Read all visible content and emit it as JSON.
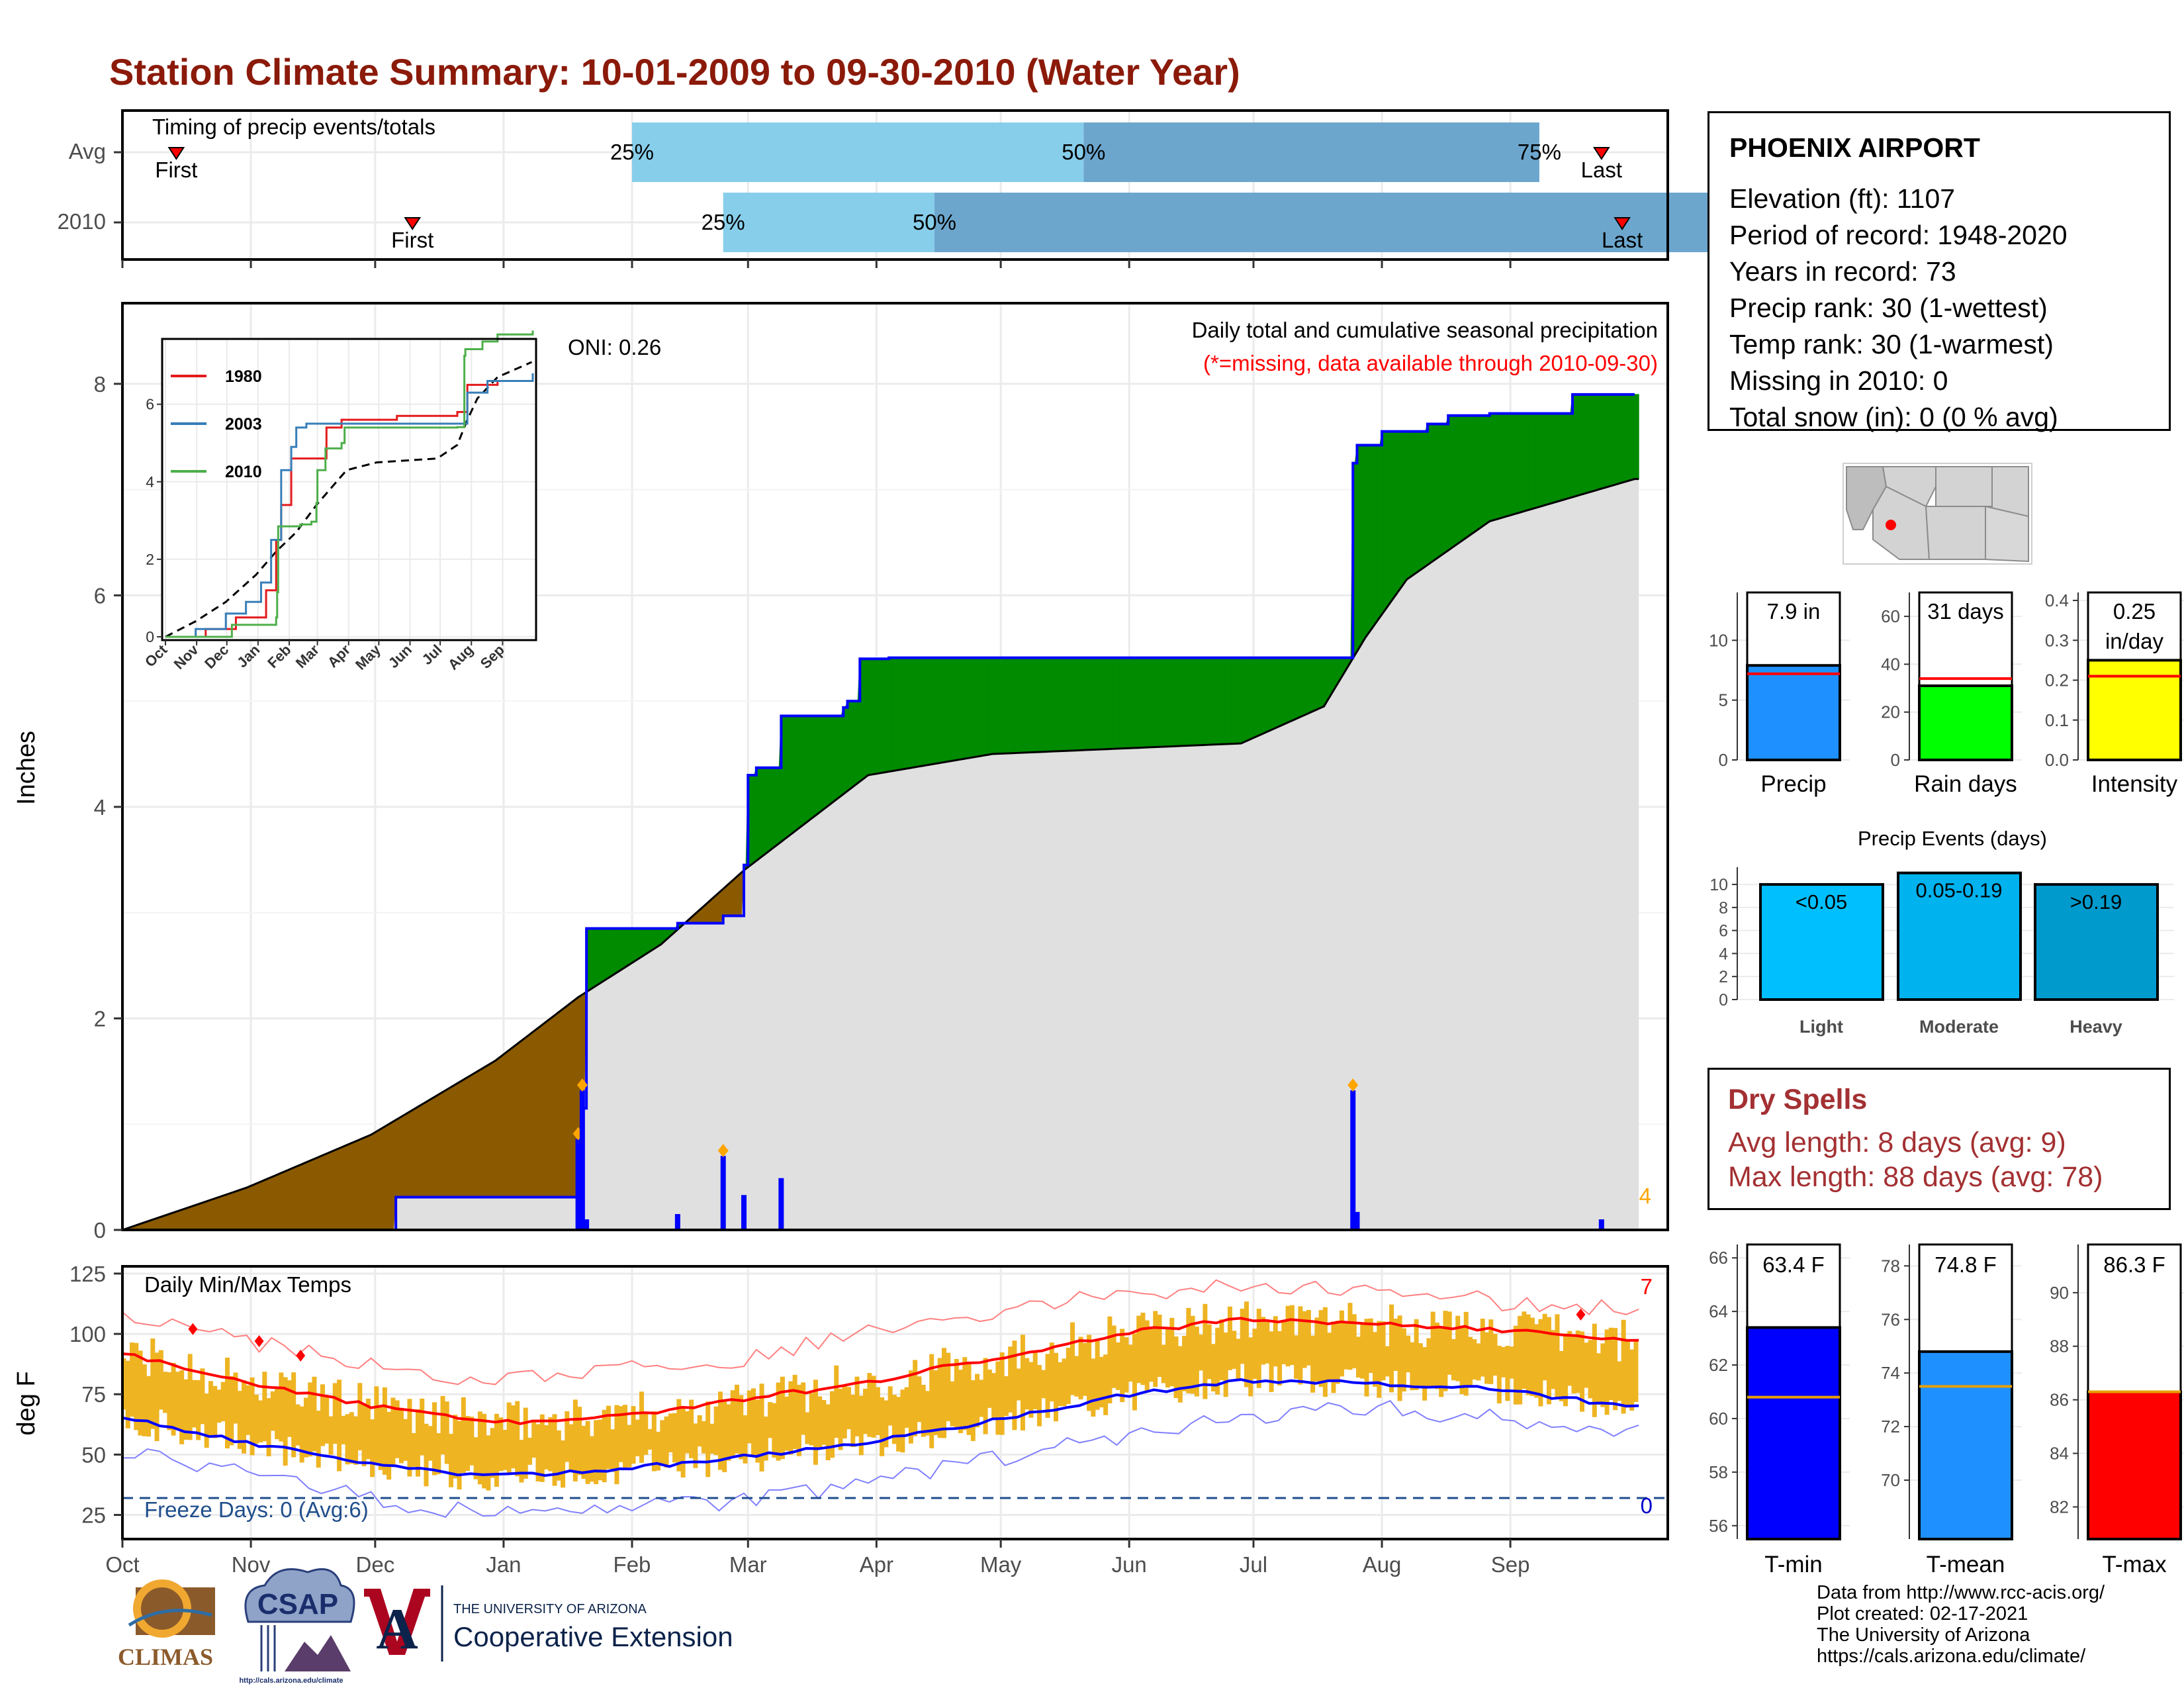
{
  "title": "Station Climate Summary: 10-01-2009 to 09-30-2010 (Water Year)",
  "colors": {
    "title": "#8b1a0a",
    "timing_light": "#87ceeb",
    "timing_dark": "#6ca6cd",
    "deficit": "#8b5a00",
    "surplus": "#008b00",
    "avg_fill": "#e0e0e0",
    "daily_precip": "#0000ff",
    "temp_range": "#eeb422",
    "mean_max": "#ff0000",
    "mean_min": "#0000ff",
    "freeze_line": "#1f4e8c",
    "dry_spells": "#a33032"
  },
  "months": [
    "Oct",
    "Nov",
    "Dec",
    "Jan",
    "Feb",
    "Mar",
    "Apr",
    "May",
    "Jun",
    "Jul",
    "Aug",
    "Sep"
  ],
  "timing": {
    "panel_title": "Timing of precip events/totals",
    "rows": [
      {
        "label": "Avg",
        "first_day": 13,
        "last_day": 357,
        "p25_day": 123,
        "p50_day": 232,
        "p75_day": 342
      },
      {
        "label": "2010",
        "first_day": 70,
        "last_day": 362,
        "p25_day": 145,
        "p50_day": 196,
        "p75_day": 407
      }
    ],
    "first_label": "First",
    "last_label": "Last",
    "pct_labels": [
      "25%",
      "50%",
      "75%"
    ]
  },
  "precip_panel": {
    "ylabel": "Inches",
    "subtitle": "Daily total and cumulative seasonal precipitation",
    "missing_note": "(*=missing, data available through 2010-09-30)",
    "oni": "ONI: 0.26",
    "yticks": [
      "0",
      "2",
      "4",
      "6",
      "8"
    ],
    "corner_count": "4"
  },
  "inset": {
    "legend": [
      "1980",
      "2003",
      "2010"
    ],
    "yticks": [
      "0",
      "2",
      "4",
      "6"
    ],
    "xticks": [
      "Oct",
      "Nov",
      "Dec",
      "Jan",
      "Feb",
      "Mar",
      "Apr",
      "May",
      "Jun",
      "Jul",
      "Aug",
      "Sep"
    ]
  },
  "temp_panel": {
    "ylabel": "deg F",
    "title": "Daily Min/Max Temps",
    "freeze_label": "Freeze Days: 0 (Avg:6)",
    "yticks": [
      "25",
      "50",
      "75",
      "100",
      "125"
    ],
    "top_count": "7",
    "bottom_count": "0"
  },
  "station": {
    "name": "PHOENIX AIRPORT",
    "lines": [
      "Elevation (ft): 1107",
      "Period of record: 1948-2020",
      "Years in record: 73",
      "Precip rank: 30 (1-wettest)",
      "Temp rank: 30 (1-warmest)",
      "Missing in 2010: 0",
      "Total snow (in): 0 (0 % avg)"
    ]
  },
  "small_bars": [
    {
      "label": "Precip",
      "value_text": "7.9 in",
      "value": 7.9,
      "avg": 7.2,
      "ymax": 14,
      "yticks": [
        "0",
        "5",
        "10"
      ],
      "color": "#1e90ff"
    },
    {
      "label": "Rain days",
      "value_text": "31 days",
      "value": 31,
      "avg": 34,
      "ymax": 70,
      "yticks": [
        "0",
        "20",
        "40",
        "60"
      ],
      "color": "#00ff00"
    },
    {
      "label": "Intensity",
      "value_text": "0.25 in/day",
      "value": 0.25,
      "avg": 0.21,
      "ymax": 0.42,
      "yticks": [
        "0.0",
        "0.1",
        "0.2",
        "0.3",
        "0.4"
      ],
      "color": "#ffff00"
    }
  ],
  "events": {
    "title": "Precip Events (days)",
    "yticks": [
      "0",
      "2",
      "4",
      "6",
      "8",
      "10"
    ],
    "bars": [
      {
        "category": "Light",
        "label": "<0.05",
        "value": 10,
        "color": "#00bfff"
      },
      {
        "category": "Moderate",
        "label": "0.05-0.19",
        "value": 11,
        "color": "#00b2ee"
      },
      {
        "category": "Heavy",
        "label": ">0.19",
        "value": 10,
        "color": "#009acd"
      }
    ]
  },
  "dry_spells": {
    "title": "Dry Spells",
    "avg": "Avg length: 8 days (avg: 9)",
    "max": "Max length: 88 days (avg: 78)"
  },
  "temp_bars": [
    {
      "label": "T-min",
      "value_text": "63.4 F",
      "value": 63.4,
      "avg": 60.8,
      "ymin": 55.5,
      "ymax": 66.5,
      "yticks": [
        "56",
        "58",
        "60",
        "62",
        "64",
        "66"
      ],
      "color": "#0000ff"
    },
    {
      "label": "T-mean",
      "value_text": "74.8 F",
      "value": 74.8,
      "avg": 73.5,
      "ymin": 67.8,
      "ymax": 78.8,
      "yticks": [
        "70",
        "72",
        "74",
        "76",
        "78"
      ],
      "color": "#1e90ff"
    },
    {
      "label": "T-max",
      "value_text": "86.3 F",
      "value": 86.3,
      "avg": 86.3,
      "ymin": 80.8,
      "ymax": 91.8,
      "yticks": [
        "82",
        "84",
        "86",
        "88",
        "90"
      ],
      "color": "#ff0000"
    }
  ],
  "footer": [
    "Data from http://www.rcc-acis.org/",
    "Plot created: 02-17-2021",
    "The University of Arizona",
    "https://cals.arizona.edu/climate/"
  ],
  "logos": {
    "climas": "CLIMAS",
    "csap": "CSAP",
    "csap_url": "http://cals.arizona.edu/climate",
    "ua_top": "THE UNIVERSITY OF ARIZONA",
    "ua_bottom": "Cooperative Extension"
  },
  "chart_data": [
    {
      "type": "area",
      "title": "Daily total and cumulative seasonal precipitation",
      "ylabel": "Inches",
      "ylim": [
        0,
        8.7
      ],
      "x_unit": "day of water year (0 = Oct 1)",
      "cumulative_2010": {
        "days": [
          0,
          66,
          110,
          111,
          112,
          134,
          145,
          150,
          151,
          153,
          159,
          160,
          174,
          175,
          178,
          185,
          245,
          290,
          297,
          298,
          304,
          315,
          320,
          330,
          350,
          365
        ],
        "inches": [
          0,
          0.31,
          0.5,
          1.15,
          2.85,
          2.9,
          2.97,
          3.45,
          4.3,
          4.37,
          4.86,
          4.86,
          4.94,
          5.0,
          5.4,
          5.41,
          5.41,
          5.41,
          7.25,
          7.42,
          7.55,
          7.62,
          7.7,
          7.72,
          7.9,
          7.9
        ]
      },
      "cumulative_avg": {
        "days": [
          0,
          30,
          60,
          90,
          110,
          130,
          150,
          180,
          210,
          240,
          270,
          290,
          300,
          310,
          330,
          365
        ],
        "inches": [
          0,
          0.4,
          0.9,
          1.6,
          2.2,
          2.7,
          3.4,
          4.3,
          4.5,
          4.55,
          4.6,
          4.95,
          5.6,
          6.15,
          6.7,
          7.1
        ]
      },
      "daily_events": [
        {
          "day": 110,
          "inches": 0.86
        },
        {
          "day": 111,
          "inches": 1.32
        },
        {
          "day": 112,
          "inches": 0.1
        },
        {
          "day": 134,
          "inches": 0.15
        },
        {
          "day": 145,
          "inches": 0.7
        },
        {
          "day": 150,
          "inches": 0.33
        },
        {
          "day": 159,
          "inches": 0.49
        },
        {
          "day": 297,
          "inches": 1.32
        },
        {
          "day": 298,
          "inches": 0.17
        },
        {
          "day": 357,
          "inches": 0.1
        }
      ]
    },
    {
      "type": "line",
      "title": "Daily Min/Max Temps",
      "ylabel": "deg F",
      "ylim": [
        15,
        128
      ],
      "freeze_threshold": 32,
      "mean_max": {
        "days": [
          0,
          30,
          60,
          90,
          120,
          150,
          180,
          210,
          240,
          270,
          300,
          330,
          365
        ],
        "values": [
          92,
          80,
          70,
          63,
          66,
          73,
          80,
          90,
          100,
          106,
          104,
          102,
          97
        ]
      },
      "mean_min": {
        "days": [
          0,
          30,
          60,
          90,
          120,
          150,
          180,
          210,
          240,
          270,
          300,
          330,
          365
        ],
        "values": [
          65,
          55,
          46,
          41,
          44,
          49,
          55,
          64,
          74,
          81,
          80,
          77,
          70
        ]
      },
      "record_max": {
        "days": [
          0,
          60,
          90,
          150,
          210,
          270,
          300,
          365
        ],
        "values": [
          106,
          88,
          80,
          90,
          110,
          120,
          117,
          110
        ]
      },
      "record_min": {
        "days": [
          0,
          60,
          90,
          150,
          210,
          270,
          300,
          365
        ],
        "values": [
          52,
          32,
          25,
          30,
          48,
          65,
          70,
          60
        ]
      }
    }
  ]
}
